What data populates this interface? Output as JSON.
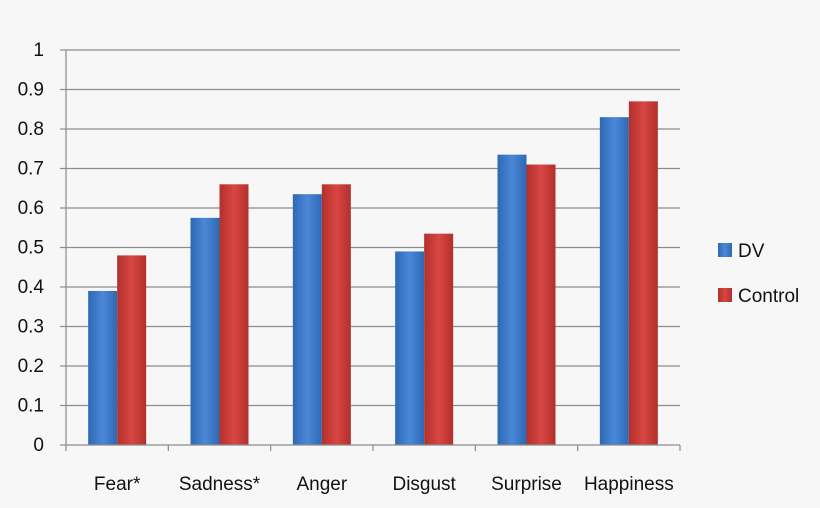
{
  "chart_data": {
    "type": "bar",
    "categories": [
      "Fear*",
      "Sadness*",
      "Anger",
      "Disgust",
      "Surprise",
      "Happiness"
    ],
    "series": [
      {
        "name": "DV",
        "values": [
          0.39,
          0.575,
          0.635,
          0.49,
          0.735,
          0.83
        ],
        "color": "#3c78c8"
      },
      {
        "name": "Control",
        "values": [
          0.48,
          0.66,
          0.66,
          0.535,
          0.71,
          0.87
        ],
        "color": "#c83a36"
      }
    ],
    "ylim": [
      0,
      1
    ],
    "yticks": [
      "0",
      "0.1",
      "0.2",
      "0.3",
      "0.4",
      "0.5",
      "0.6",
      "0.7",
      "0.8",
      "0.9",
      "1"
    ],
    "grid": true,
    "legend_position": "right",
    "title": "",
    "xlabel": "",
    "ylabel": ""
  }
}
